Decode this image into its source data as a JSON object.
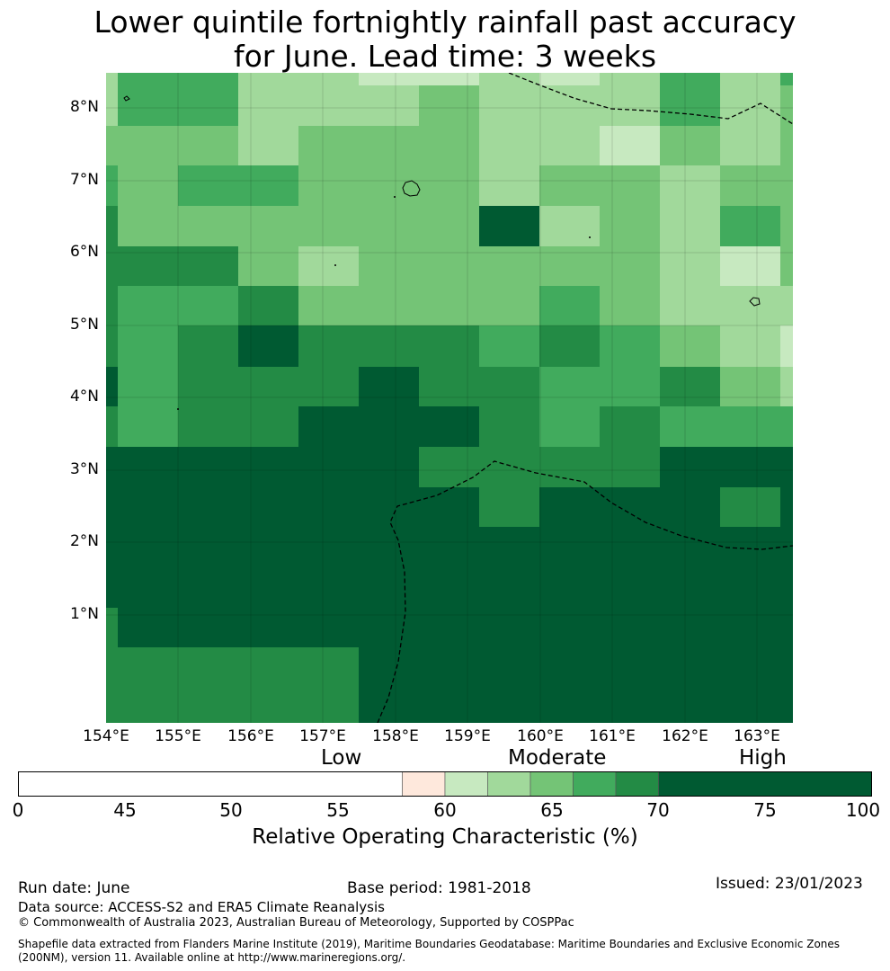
{
  "title": {
    "line1": "Lower quintile fortnightly rainfall past accuracy",
    "line2": "for June. Lead time: 3 weeks"
  },
  "map": {
    "lon_range": [
      154.0,
      163.5
    ],
    "lat_range": [
      -0.3,
      8.5
    ],
    "lat_labels": [
      "8°N",
      "7°N",
      "6°N",
      "5°N",
      "4°N",
      "3°N",
      "2°N",
      "1°N"
    ],
    "lon_labels": [
      "154°E",
      "155°E",
      "156°E",
      "157°E",
      "158°E",
      "159°E",
      "160°E",
      "161°E",
      "162°E",
      "163°E"
    ],
    "colors": {
      "c45": "#fee8dc",
      "c50": "#c7e9c0",
      "c55": "#a1d99b",
      "c60": "#74c476",
      "c65": "#41ab5d",
      "c70": "#238b45",
      "c75": "#005a32"
    }
  },
  "colorbar": {
    "categories": {
      "low": "Low",
      "moderate": "Moderate",
      "high": "High"
    },
    "ticks": [
      "0",
      "45",
      "50",
      "55",
      "60",
      "65",
      "70",
      "75",
      "100"
    ],
    "title": "Relative Operating Characteristic (%)",
    "colors": [
      "#ffffff",
      "#fee8dc",
      "#c7e9c0",
      "#a1d99b",
      "#74c476",
      "#41ab5d",
      "#238b45",
      "#005a32"
    ]
  },
  "footer": {
    "run_date": "Run date: June",
    "base_period": "Base period: 1981-2018",
    "issued": "Issued: 23/01/2023",
    "data_source": "Data source: ACCESS-S2 and ERA5 Climate Reanalysis",
    "copyright": "© Commonwealth of Australia 2023, Australian Bureau of Meteorology, Supported by COSPPac",
    "shapefile_line1": "Shapefile data extracted from Flanders Marine Institute (2019), Maritime Boundaries Geodatabase: Maritime Boundaries and Exclusive Economic Zones",
    "shapefile_line2": "(200NM), version 11. Available online at http://www.marineregions.org/."
  }
}
